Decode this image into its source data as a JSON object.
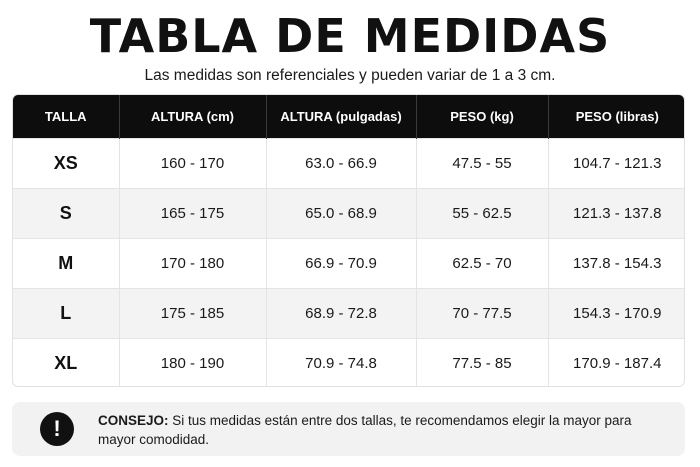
{
  "title": "TABLA DE MEDIDAS",
  "subtitle": "Las medidas son referenciales y pueden variar de 1 a 3 cm.",
  "table": {
    "headers": [
      "TALLA",
      "ALTURA (cm)",
      "ALTURA (pulgadas)",
      "PESO (kg)",
      "PESO (libras)"
    ],
    "rows": [
      [
        "XS",
        "160 - 170",
        "63.0 - 66.9",
        "47.5 - 55",
        "104.7 - 121.3"
      ],
      [
        "S",
        "165 - 175",
        "65.0 - 68.9",
        "55 - 62.5",
        "121.3 - 137.8"
      ],
      [
        "M",
        "170 - 180",
        "66.9 - 70.9",
        "62.5 - 70",
        "137.8 - 154.3"
      ],
      [
        "L",
        "175 - 185",
        "68.9 - 72.8",
        "70 - 77.5",
        "154.3 - 170.9"
      ],
      [
        "XL",
        "180 - 190",
        "70.9 - 74.8",
        "77.5 - 85",
        "170.9 - 187.4"
      ]
    ]
  },
  "tip": {
    "icon": "exclamation-icon",
    "label": "CONSEJO:",
    "text": "Si tus medidas están entre dos tallas, te recomendamos elegir la mayor para mayor comodidad."
  },
  "colors": {
    "header_bg": "#0d0d0d",
    "header_text": "#ffffff",
    "row_alt_bg": "#f3f3f3",
    "tip_bg": "#f2f2f2"
  }
}
